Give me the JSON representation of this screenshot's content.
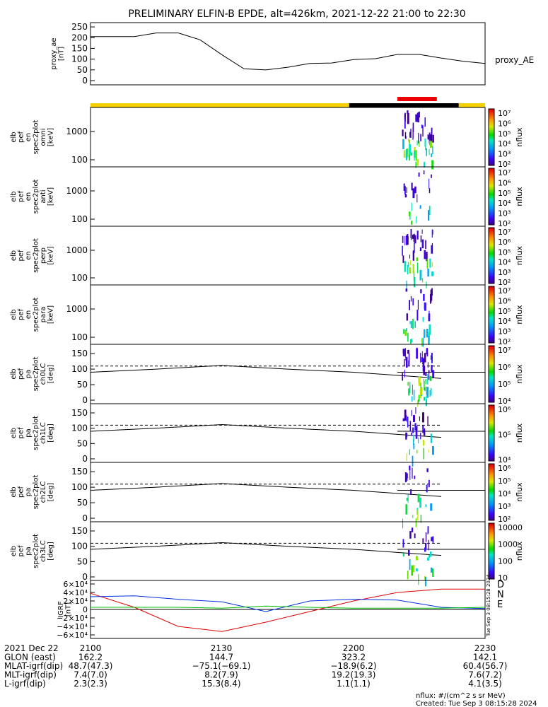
{
  "title": "PRELIMINARY ELFIN-B EPDE, alt=426km, 2021-12-22 21:00 to 22:30",
  "panels": {
    "ae": {
      "ylabel_lines": [
        "proxy_ae",
        "[nT]"
      ],
      "yticks": [
        "250",
        "200",
        "150",
        "100",
        "50",
        "0"
      ],
      "legend": "proxy_AE"
    },
    "spec": [
      {
        "ylabel_lines": [
          "elb",
          "pef",
          "en",
          "spec2plot",
          "omni",
          "[keV]"
        ],
        "yticks": [
          "1000",
          "100"
        ]
      },
      {
        "ylabel_lines": [
          "elb",
          "pef",
          "en",
          "spec2plot",
          "anti",
          "[keV]"
        ],
        "yticks": [
          "1000",
          "100"
        ]
      },
      {
        "ylabel_lines": [
          "elb",
          "pef",
          "en",
          "spec2plot",
          "perp",
          "[keV]"
        ],
        "yticks": [
          "1000",
          "100"
        ]
      },
      {
        "ylabel_lines": [
          "elb",
          "pef",
          "en",
          "spec2plot",
          "para",
          "[keV]"
        ],
        "yticks": [
          "1000",
          "100"
        ]
      }
    ],
    "pa": [
      {
        "ylabel_lines": [
          "elb",
          "pef",
          "pa",
          "spec2plot",
          "ch0LC",
          "[deg]"
        ],
        "yticks": [
          "150",
          "100",
          "50",
          "0"
        ]
      },
      {
        "ylabel_lines": [
          "elb",
          "pef",
          "pa",
          "spec2plot",
          "ch1LC",
          "[deg]"
        ],
        "yticks": [
          "150",
          "100",
          "50",
          "0"
        ]
      },
      {
        "ylabel_lines": [
          "elb",
          "pef",
          "pa",
          "spec2plot",
          "ch2LC",
          "[deg]"
        ],
        "yticks": [
          "150",
          "100",
          "50",
          "0"
        ]
      },
      {
        "ylabel_lines": [
          "elb",
          "pef",
          "pa",
          "spec2plot",
          "ch3LC",
          "[deg]"
        ],
        "yticks": [
          "150",
          "100",
          "50",
          "0"
        ]
      }
    ],
    "igrf": {
      "ylabel_lines": [
        "IGRF",
        "[nT]"
      ],
      "yticks": [
        "6×10⁴",
        "4×10⁴",
        "2×10⁴",
        "0",
        "−2×10⁴",
        "−4×10⁴",
        "−6×10⁴"
      ],
      "legend": [
        "D",
        "N",
        "E"
      ]
    }
  },
  "colorbars": [
    {
      "label": "nflux",
      "ticks": [
        "10⁷",
        "10⁶",
        "10⁵",
        "10⁴",
        "10³",
        "10²"
      ]
    },
    {
      "label": "nflux",
      "ticks": [
        "10⁷",
        "10⁶",
        "10⁵",
        "10⁴",
        "10³",
        "10²"
      ]
    },
    {
      "label": "nflux",
      "ticks": [
        "10⁷",
        "10⁶",
        "10⁵",
        "10⁴",
        "10³",
        "10²"
      ]
    },
    {
      "label": "nflux",
      "ticks": [
        "10⁷",
        "10⁶",
        "10⁵",
        "10⁴",
        "10³",
        "10²"
      ]
    },
    {
      "label": "nflux",
      "ticks": [
        "10⁷",
        "10⁶",
        "10⁵",
        "10⁴"
      ]
    },
    {
      "label": "nflux",
      "ticks": [
        "10⁶",
        "10⁵",
        "10⁴"
      ]
    },
    {
      "label": "nflux",
      "ticks": [
        "10⁶",
        "10⁵",
        "10⁴",
        "10³",
        "10²"
      ]
    },
    {
      "label": "nflux",
      "ticks": [
        "10000",
        "1000",
        "100",
        "10"
      ]
    }
  ],
  "footer": {
    "rows": [
      [
        "2021 Dec 22",
        "2100",
        "2130",
        "2200",
        "2230"
      ],
      [
        "GLON (east)",
        "162.2",
        "144.7",
        "323.2",
        "142.1"
      ],
      [
        "MLAT-igrf(dip)",
        "48.7(47.3)",
        "−75.1(−69.1)",
        "−18.9(6.2)",
        "60.4(56.7)"
      ],
      [
        "MLT-igrf(dip)",
        "7.4(7.0)",
        "8.2(7.9)",
        "19.2(19.3)",
        "7.6(7.2)"
      ],
      [
        "L-igrf(dip)",
        "2.3(2.3)",
        "15.3(8.4)",
        "1.1(1.1)",
        "4.1(3.5)"
      ]
    ],
    "units": "nflux: #/(cm^2 s sr MeV)",
    "created": "Created: Tue Sep  3 08:15:28 2024",
    "side_stamp": "Tue Sep  3 08:15:28 2024"
  },
  "chart_data": [
    {
      "type": "line",
      "name": "proxy_ae",
      "x": [
        "21:00",
        "21:05",
        "21:10",
        "21:15",
        "21:20",
        "21:25",
        "21:30",
        "21:35",
        "21:40",
        "21:45",
        "21:50",
        "21:55",
        "22:00",
        "22:05",
        "22:10",
        "22:15",
        "22:20",
        "22:25",
        "22:30"
      ],
      "series": [
        {
          "name": "proxy_AE",
          "values": [
            205,
            205,
            205,
            222,
            222,
            190,
            120,
            55,
            50,
            62,
            80,
            82,
            98,
            102,
            122,
            122,
            105,
            90,
            80
          ]
        }
      ],
      "ylim": [
        0,
        270
      ]
    },
    {
      "type": "line",
      "name": "IGRF",
      "x": [
        "21:00",
        "21:10",
        "21:20",
        "21:30",
        "21:40",
        "21:50",
        "22:00",
        "22:10",
        "22:20",
        "22:30"
      ],
      "series": [
        {
          "name": "D",
          "values": [
            38000,
            5000,
            -40000,
            -52000,
            -30000,
            -5000,
            20000,
            40000,
            48000,
            48000
          ]
        },
        {
          "name": "N",
          "values": [
            30000,
            32000,
            24000,
            18000,
            -5000,
            20000,
            24000,
            22000,
            5000,
            2000
          ]
        },
        {
          "name": "E",
          "values": [
            5000,
            5000,
            5000,
            3000,
            8000,
            5000,
            3000,
            3000,
            3000,
            5000
          ]
        }
      ],
      "ylim": [
        -65000,
        65000
      ]
    },
    {
      "type": "line",
      "name": "pitch-angle reference lines",
      "x": [
        "21:00",
        "21:15",
        "21:30",
        "21:45",
        "22:00",
        "22:10",
        "22:20"
      ],
      "series": [
        {
          "name": "solid",
          "values": [
            90,
            100,
            112,
            100,
            90,
            80,
            70
          ]
        },
        {
          "name": "dashed",
          "values": [
            110,
            110,
            110,
            110,
            110,
            110,
            110
          ]
        }
      ],
      "ylim": [
        0,
        180
      ]
    },
    {
      "type": "bar",
      "name": "spacecraft state bar",
      "segments": [
        {
          "from": "21:00",
          "to": "21:59",
          "color": "#f5d000"
        },
        {
          "from": "21:59",
          "to": "22:24",
          "color": "#000000"
        },
        {
          "from": "22:24",
          "to": "22:30",
          "color": "#f5d000"
        }
      ],
      "marker": {
        "from": "22:10",
        "to": "22:19",
        "color": "#ee0000"
      }
    }
  ]
}
